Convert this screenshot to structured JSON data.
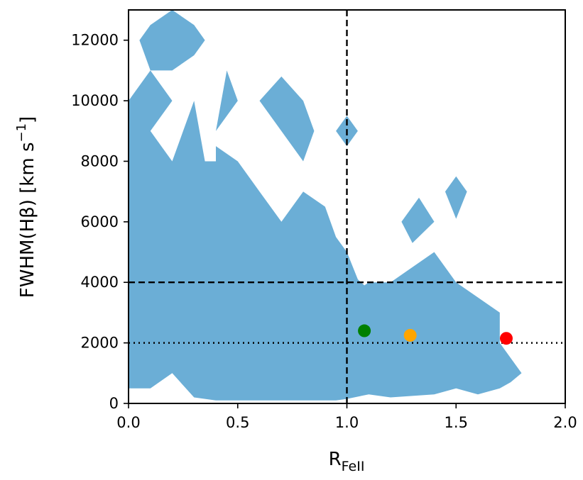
{
  "chart_data": {
    "type": "scatter",
    "xlabel": {
      "main": "R",
      "sub": "FeII"
    },
    "ylabel": {
      "prefix": "FWHM(Hβ) [km s",
      "sup": "−1",
      "suffix": "]"
    },
    "xlim": [
      0.0,
      2.0
    ],
    "ylim": [
      0,
      13000
    ],
    "grid": false,
    "xticks": [
      0.0,
      0.5,
      1.0,
      1.5,
      2.0
    ],
    "xtick_labels": [
      "0.0",
      "0.5",
      "1.0",
      "1.5",
      "2.0"
    ],
    "yticks": [
      0,
      2000,
      4000,
      6000,
      8000,
      10000,
      12000
    ],
    "ytick_labels": [
      "0",
      "2000",
      "4000",
      "6000",
      "8000",
      "10000",
      "12000"
    ],
    "contour_color": "#6baed6",
    "contour_regions": [
      {
        "name": "main-region",
        "x": [
          0.0,
          0.1,
          0.2,
          0.3,
          0.4,
          0.6,
          0.8,
          0.9,
          0.95,
          1.0,
          1.1,
          1.2,
          1.4,
          1.5,
          1.6,
          1.7,
          1.75,
          1.8,
          1.7,
          1.7,
          1.5,
          1.4,
          1.2,
          1.1,
          1.08,
          1.05,
          1.0,
          0.95,
          0.9,
          0.8,
          0.7,
          0.7,
          0.6,
          0.5,
          0.4,
          0.4,
          0.35,
          0.3,
          0.25,
          0.2,
          0.15,
          0.1,
          0.2,
          0.1,
          0.0
        ],
        "y": [
          500,
          500,
          1000,
          200,
          100,
          100,
          100,
          100,
          100,
          150,
          300,
          200,
          300,
          500,
          300,
          500,
          700,
          1000,
          2000,
          3000,
          4000,
          5000,
          4000,
          4000,
          3900,
          4100,
          5000,
          5500,
          6500,
          7000,
          6000,
          6000,
          7000,
          8000,
          8500,
          8000,
          8000,
          10000,
          9000,
          8000,
          8500,
          9000,
          10000,
          11000,
          10000
        ]
      },
      {
        "name": "branch-region",
        "x": [
          0.4,
          0.5,
          0.45,
          0.4
        ],
        "y": [
          9000,
          10000,
          11000,
          9000
        ]
      },
      {
        "name": "top-left-region",
        "x": [
          0.05,
          0.1,
          0.2,
          0.3,
          0.35,
          0.3,
          0.2,
          0.1,
          0.05
        ],
        "y": [
          12000,
          12500,
          13000,
          12500,
          12000,
          11500,
          11000,
          11000,
          12000
        ]
      },
      {
        "name": "island-region-1",
        "x": [
          0.6,
          0.7,
          0.8,
          0.85,
          0.8,
          0.6
        ],
        "y": [
          10000,
          10800,
          10000,
          9000,
          8000,
          10000
        ]
      },
      {
        "name": "island-region-2",
        "x": [
          0.95,
          1.0,
          1.05,
          1.0,
          0.95
        ],
        "y": [
          9000,
          9500,
          9000,
          8500,
          9000
        ]
      },
      {
        "name": "island-region-3",
        "x": [
          1.25,
          1.33,
          1.4,
          1.3,
          1.25
        ],
        "y": [
          6000,
          6800,
          6000,
          5300,
          6000
        ]
      },
      {
        "name": "island-region-4",
        "x": [
          1.45,
          1.5,
          1.55,
          1.5,
          1.45
        ],
        "y": [
          7000,
          7500,
          7000,
          6100,
          7000
        ]
      }
    ],
    "reference_lines": [
      {
        "name": "vertical-dashed-line",
        "orientation": "vertical",
        "value": 1.0,
        "style": "dashed"
      },
      {
        "name": "horizontal-dashed-line",
        "orientation": "horizontal",
        "value": 4000,
        "style": "dashed"
      },
      {
        "name": "horizontal-dotted-line",
        "orientation": "horizontal",
        "value": 2000,
        "style": "dotted"
      }
    ],
    "points": [
      {
        "x": 1.08,
        "y": 2400,
        "color": "#008000"
      },
      {
        "x": 1.29,
        "y": 2250,
        "color": "#ffa500"
      },
      {
        "x": 1.73,
        "y": 2150,
        "color": "#ff0000"
      }
    ]
  }
}
